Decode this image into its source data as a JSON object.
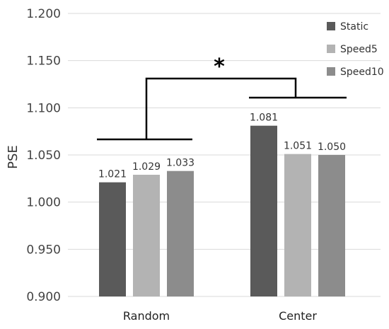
{
  "chart_data": {
    "type": "bar",
    "ylabel": "PSE",
    "xlabel": "",
    "ylim": [
      0.9,
      1.2
    ],
    "yticks": [
      "0.900",
      "0.950",
      "1.000",
      "1.050",
      "1.100",
      "1.150",
      "1.200"
    ],
    "categories": [
      "Random",
      "Center"
    ],
    "series": [
      {
        "name": "Static",
        "values": [
          1.021,
          1.081
        ],
        "labels": [
          "1.021",
          "1.081"
        ],
        "color": "#5a5a5a"
      },
      {
        "name": "Speed5",
        "values": [
          1.029,
          1.051
        ],
        "labels": [
          "1.029",
          "1.051"
        ],
        "color": "#b3b3b3"
      },
      {
        "name": "Speed10",
        "values": [
          1.033,
          1.05
        ],
        "labels": [
          "1.033",
          "1.050"
        ],
        "color": "#8c8c8c"
      }
    ],
    "grid": true,
    "legend_position": "top-right",
    "annotation": {
      "text": "*",
      "between": [
        "Random",
        "Center"
      ]
    }
  }
}
